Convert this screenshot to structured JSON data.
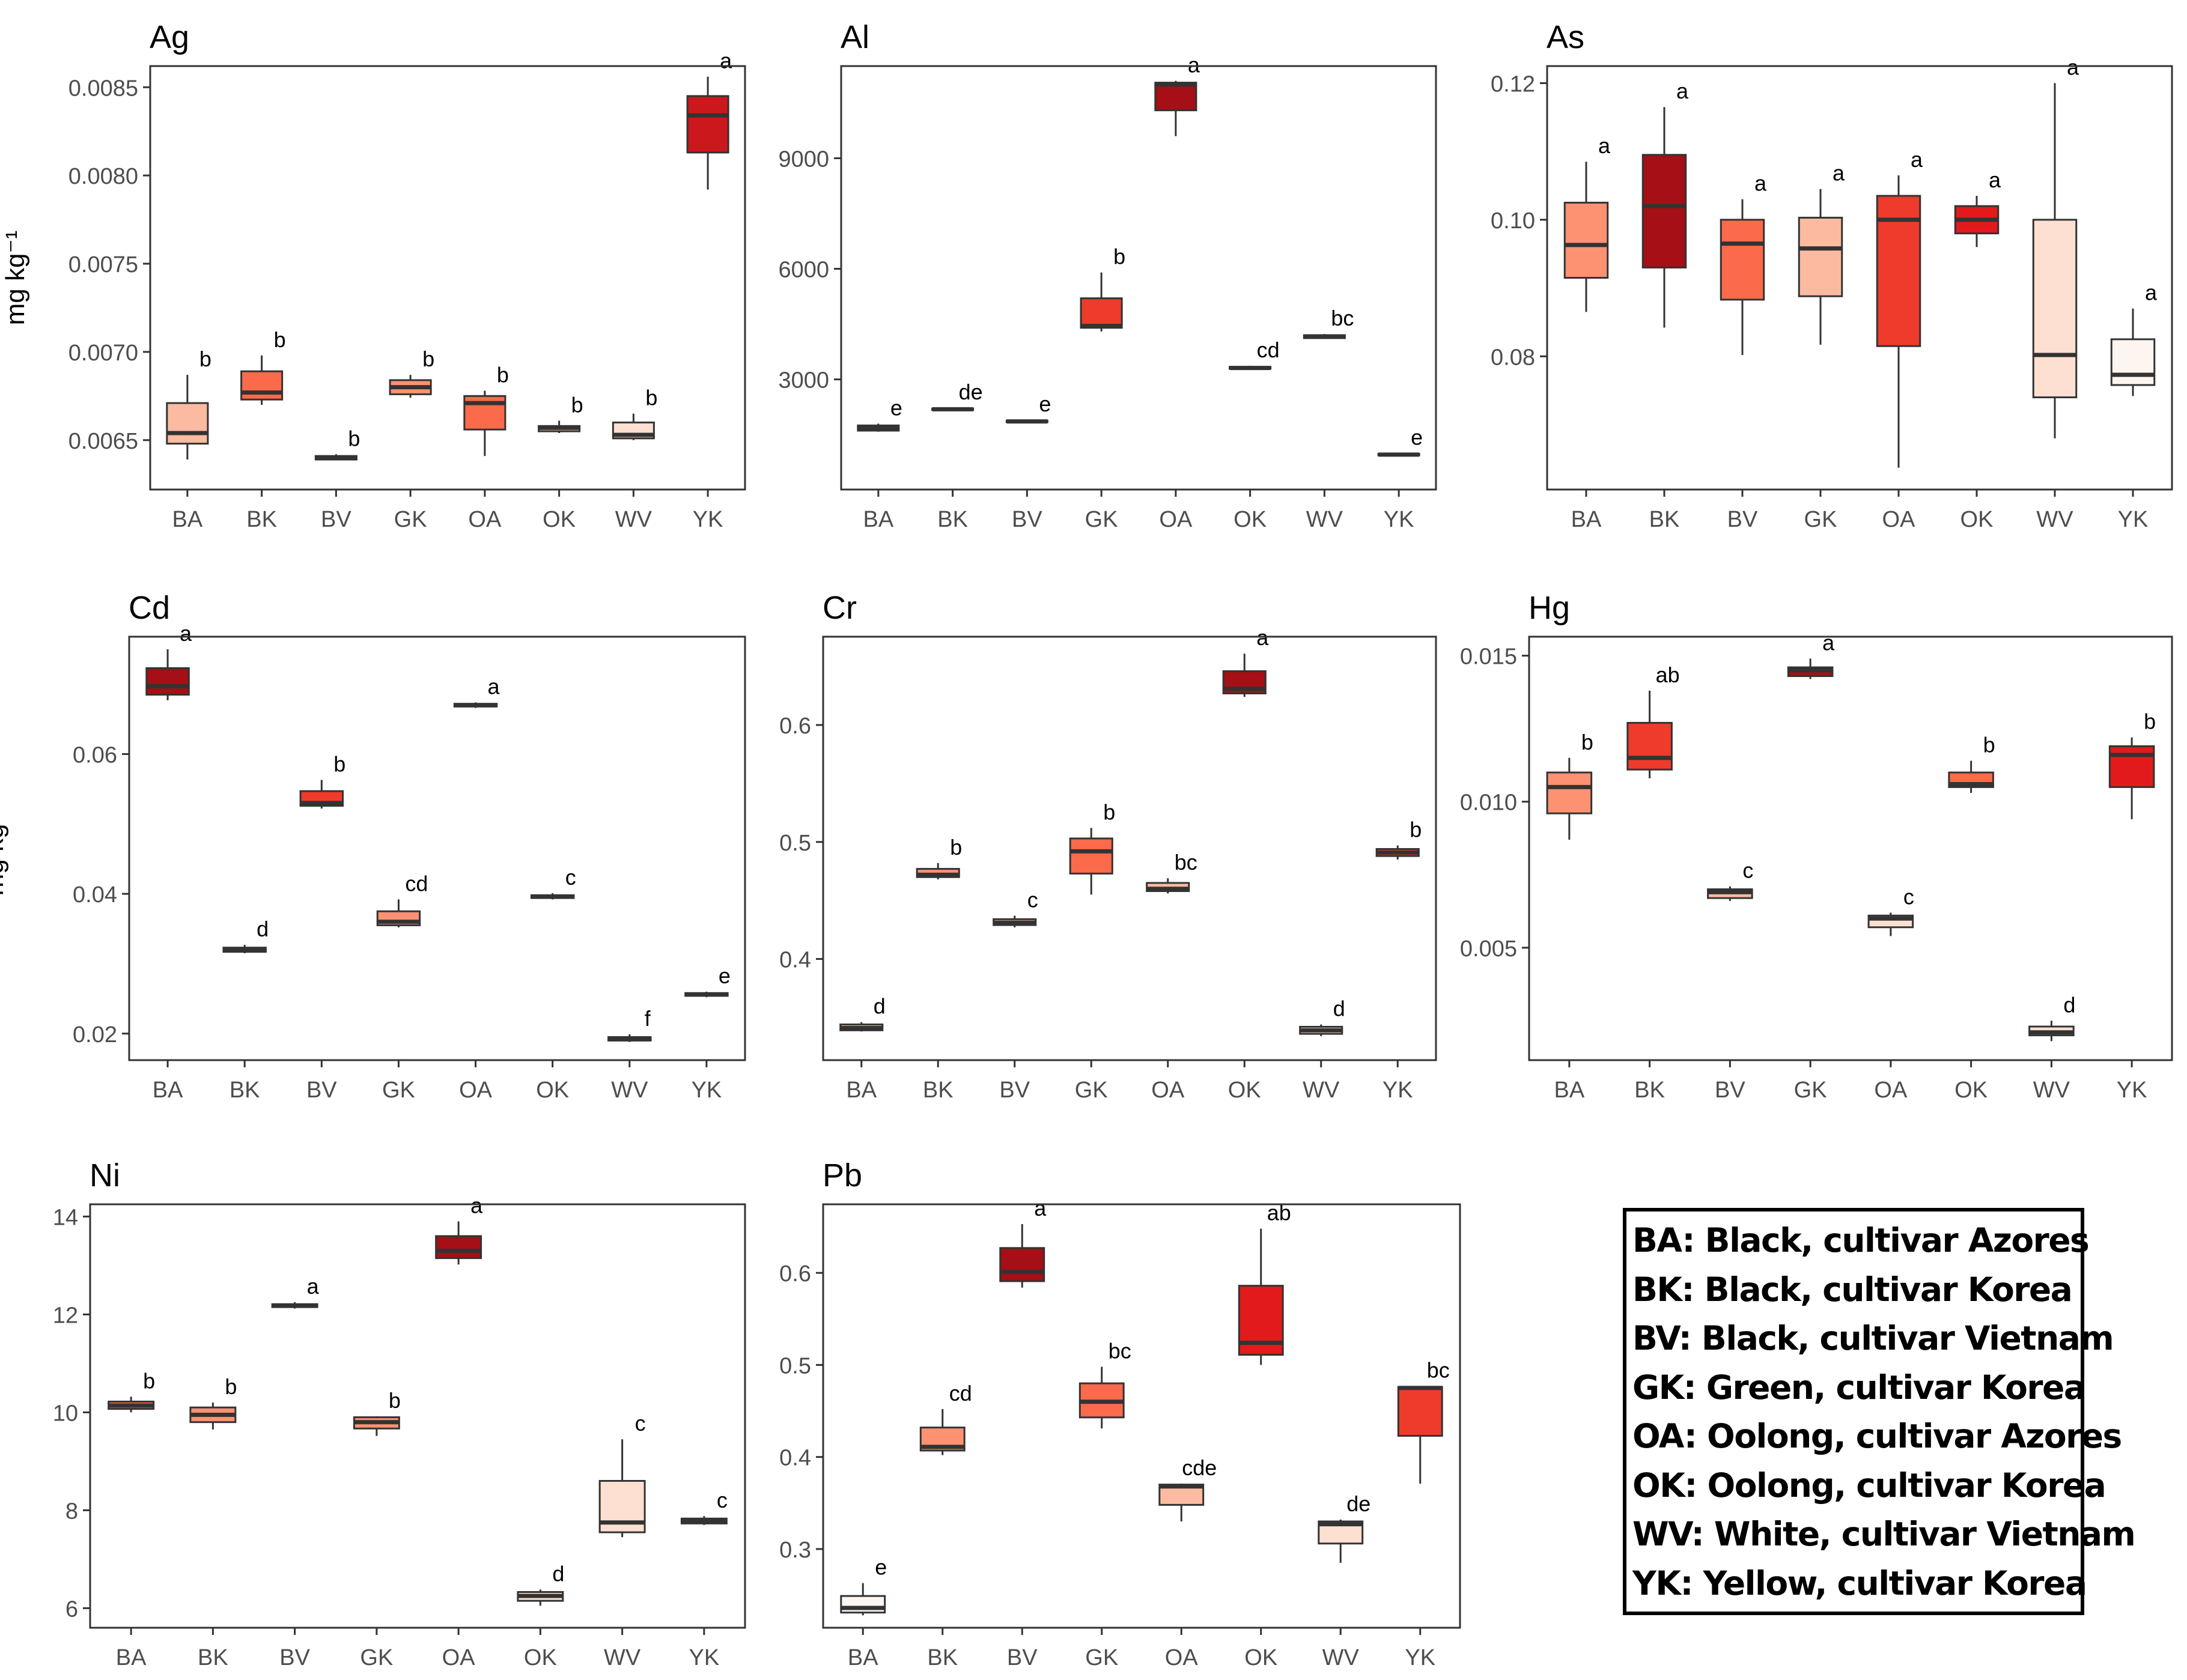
{
  "y_unit_label": "mg kg⁻¹",
  "legend": [
    "BA: Black, cultivar Azores",
    "BK: Black, cultivar Korea",
    "BV: Black, cultivar Vietnam",
    "GK: Green, cultivar Korea",
    "OA: Oolong, cultivar Azores",
    "OK: Oolong, cultivar Korea",
    "WV: White, cultivar Vietnam",
    "YK: Yellow, cultivar Korea"
  ],
  "chart_data": [
    {
      "type": "box",
      "title": "Ag",
      "ylabel": "mg kg⁻¹",
      "categories": [
        "BA",
        "BK",
        "BV",
        "GK",
        "OA",
        "OK",
        "WV",
        "YK"
      ],
      "ylim": [
        0.00622,
        0.00862
      ],
      "yticks": [
        0.0065,
        0.007,
        0.0075,
        0.008,
        0.0085
      ],
      "ytick_labels": [
        "0.0065",
        "0.0070",
        "0.0075",
        "0.0080",
        "0.0085"
      ],
      "boxes": [
        {
          "min": 0.00639,
          "q1": 0.00648,
          "median": 0.00654,
          "q3": 0.00671,
          "max": 0.00687,
          "letter": "b",
          "color": "#fcbba1"
        },
        {
          "min": 0.0067,
          "q1": 0.00673,
          "median": 0.00677,
          "q3": 0.00689,
          "max": 0.00698,
          "letter": "b",
          "color": "#fb6a4a"
        },
        {
          "min": 0.00639,
          "q1": 0.00639,
          "median": 0.0064,
          "q3": 0.00641,
          "max": 0.00642,
          "letter": "b",
          "color": "#fff5f0"
        },
        {
          "min": 0.00674,
          "q1": 0.00676,
          "median": 0.0068,
          "q3": 0.00684,
          "max": 0.00687,
          "letter": "b",
          "color": "#fc9272"
        },
        {
          "min": 0.00641,
          "q1": 0.00656,
          "median": 0.00671,
          "q3": 0.00675,
          "max": 0.00678,
          "letter": "b",
          "color": "#fb6a4a"
        },
        {
          "min": 0.00654,
          "q1": 0.00655,
          "median": 0.00657,
          "q3": 0.00658,
          "max": 0.00661,
          "letter": "b",
          "color": "#fcbba1"
        },
        {
          "min": 0.0065,
          "q1": 0.00651,
          "median": 0.00653,
          "q3": 0.0066,
          "max": 0.00665,
          "letter": "b",
          "color": "#fee0d2"
        },
        {
          "min": 0.00792,
          "q1": 0.00813,
          "median": 0.00834,
          "q3": 0.00845,
          "max": 0.00856,
          "letter": "a",
          "color": "#cb181d"
        }
      ]
    },
    {
      "type": "box",
      "title": "Al",
      "ylabel": "",
      "categories": [
        "BA",
        "BK",
        "BV",
        "GK",
        "OA",
        "OK",
        "WV",
        "YK"
      ],
      "ylim": [
        12,
        11500
      ],
      "yticks": [
        3000,
        6000,
        9000
      ],
      "ytick_labels": [
        "3000",
        "6000",
        "9000"
      ],
      "boxes": [
        {
          "min": 1580,
          "q1": 1610,
          "median": 1690,
          "q3": 1750,
          "max": 1800,
          "letter": "e",
          "color": "#fcbba1"
        },
        {
          "min": 2150,
          "q1": 2170,
          "median": 2190,
          "q3": 2210,
          "max": 2230,
          "letter": "de",
          "color": "#fcbba1"
        },
        {
          "min": 1820,
          "q1": 1840,
          "median": 1860,
          "q3": 1880,
          "max": 1900,
          "letter": "e",
          "color": "#fcbba1"
        },
        {
          "min": 4300,
          "q1": 4400,
          "median": 4450,
          "q3": 5200,
          "max": 5900,
          "letter": "b",
          "color": "#ef3b2c"
        },
        {
          "min": 9600,
          "q1": 10300,
          "median": 11000,
          "q3": 11050,
          "max": 11100,
          "letter": "a",
          "color": "#a50f15"
        },
        {
          "min": 3270,
          "q1": 3290,
          "median": 3310,
          "q3": 3340,
          "max": 3370,
          "letter": "cd",
          "color": "#fcbba1"
        },
        {
          "min": 4100,
          "q1": 4120,
          "median": 4160,
          "q3": 4200,
          "max": 4230,
          "letter": "bc",
          "color": "#fcbba1"
        },
        {
          "min": 920,
          "q1": 940,
          "median": 960,
          "q3": 980,
          "max": 1000,
          "letter": "e",
          "color": "#fff5f0"
        }
      ]
    },
    {
      "type": "box",
      "title": "As",
      "ylabel": "",
      "categories": [
        "BA",
        "BK",
        "BV",
        "GK",
        "OA",
        "OK",
        "WV",
        "YK"
      ],
      "ylim": [
        0.0605,
        0.1225
      ],
      "yticks": [
        0.08,
        0.1,
        0.12
      ],
      "ytick_labels": [
        "0.08",
        "0.10",
        "0.12"
      ],
      "boxes": [
        {
          "min": 0.0865,
          "q1": 0.0915,
          "median": 0.0963,
          "q3": 0.1025,
          "max": 0.1085,
          "letter": "a",
          "color": "#fc9272"
        },
        {
          "min": 0.0842,
          "q1": 0.093,
          "median": 0.102,
          "q3": 0.1095,
          "max": 0.1165,
          "letter": "a",
          "color": "#a50f15"
        },
        {
          "min": 0.0802,
          "q1": 0.0883,
          "median": 0.0965,
          "q3": 0.1,
          "max": 0.103,
          "letter": "a",
          "color": "#fb6a4a"
        },
        {
          "min": 0.0817,
          "q1": 0.0888,
          "median": 0.0958,
          "q3": 0.1003,
          "max": 0.1045,
          "letter": "a",
          "color": "#fcbba1"
        },
        {
          "min": 0.0637,
          "q1": 0.0815,
          "median": 0.1,
          "q3": 0.1035,
          "max": 0.1065,
          "letter": "a",
          "color": "#ef3b2c"
        },
        {
          "min": 0.096,
          "q1": 0.098,
          "median": 0.1,
          "q3": 0.102,
          "max": 0.1035,
          "letter": "a",
          "color": "#e31a1c"
        },
        {
          "min": 0.068,
          "q1": 0.074,
          "median": 0.0802,
          "q3": 0.1,
          "max": 0.12,
          "letter": "a",
          "color": "#fee0d2"
        },
        {
          "min": 0.0742,
          "q1": 0.0758,
          "median": 0.0773,
          "q3": 0.0825,
          "max": 0.087,
          "letter": "a",
          "color": "#fff5f0"
        }
      ]
    },
    {
      "type": "box",
      "title": "Cd",
      "ylabel": "mg kg⁻¹",
      "categories": [
        "BA",
        "BK",
        "BV",
        "GK",
        "OA",
        "OK",
        "WV",
        "YK"
      ],
      "ylim": [
        0.0162,
        0.0768
      ],
      "yticks": [
        0.02,
        0.04,
        0.06
      ],
      "ytick_labels": [
        "0.02",
        "0.04",
        "0.06"
      ],
      "boxes": [
        {
          "min": 0.0677,
          "q1": 0.0685,
          "median": 0.0697,
          "q3": 0.0723,
          "max": 0.075,
          "letter": "a",
          "color": "#a50f15"
        },
        {
          "min": 0.0315,
          "q1": 0.0317,
          "median": 0.032,
          "q3": 0.0323,
          "max": 0.0327,
          "letter": "d",
          "color": "#fcbba1"
        },
        {
          "min": 0.0522,
          "q1": 0.0526,
          "median": 0.053,
          "q3": 0.0547,
          "max": 0.0563,
          "letter": "b",
          "color": "#ef3b2c"
        },
        {
          "min": 0.0352,
          "q1": 0.0355,
          "median": 0.036,
          "q3": 0.0375,
          "max": 0.0392,
          "letter": "cd",
          "color": "#fc9272"
        },
        {
          "min": 0.0666,
          "q1": 0.0668,
          "median": 0.067,
          "q3": 0.0672,
          "max": 0.0674,
          "letter": "a",
          "color": "#fcbba1"
        },
        {
          "min": 0.0392,
          "q1": 0.0394,
          "median": 0.0396,
          "q3": 0.0398,
          "max": 0.0401,
          "letter": "c",
          "color": "#fcbba1"
        },
        {
          "min": 0.0188,
          "q1": 0.019,
          "median": 0.0192,
          "q3": 0.0195,
          "max": 0.0199,
          "letter": "f",
          "color": "#fee0d2"
        },
        {
          "min": 0.0252,
          "q1": 0.0254,
          "median": 0.0256,
          "q3": 0.0258,
          "max": 0.026,
          "letter": "e",
          "color": "#fee0d2"
        }
      ]
    },
    {
      "type": "box",
      "title": "Cr",
      "ylabel": "",
      "categories": [
        "BA",
        "BK",
        "BV",
        "GK",
        "OA",
        "OK",
        "WV",
        "YK"
      ],
      "ylim": [
        0.3135,
        0.6755
      ],
      "yticks": [
        0.4,
        0.5,
        0.6
      ],
      "ytick_labels": [
        "0.4",
        "0.5",
        "0.6"
      ],
      "boxes": [
        {
          "min": 0.338,
          "q1": 0.339,
          "median": 0.341,
          "q3": 0.344,
          "max": 0.346,
          "letter": "d",
          "color": "#fcbba1"
        },
        {
          "min": 0.468,
          "q1": 0.47,
          "median": 0.472,
          "q3": 0.477,
          "max": 0.482,
          "letter": "b",
          "color": "#fc9272"
        },
        {
          "min": 0.427,
          "q1": 0.429,
          "median": 0.431,
          "q3": 0.434,
          "max": 0.437,
          "letter": "c",
          "color": "#fcbba1"
        },
        {
          "min": 0.455,
          "q1": 0.473,
          "median": 0.492,
          "q3": 0.503,
          "max": 0.512,
          "letter": "b",
          "color": "#fb6a4a"
        },
        {
          "min": 0.456,
          "q1": 0.458,
          "median": 0.46,
          "q3": 0.465,
          "max": 0.469,
          "letter": "bc",
          "color": "#fcbba1"
        },
        {
          "min": 0.624,
          "q1": 0.627,
          "median": 0.631,
          "q3": 0.646,
          "max": 0.661,
          "letter": "a",
          "color": "#a50f15"
        },
        {
          "min": 0.334,
          "q1": 0.336,
          "median": 0.339,
          "q3": 0.342,
          "max": 0.344,
          "letter": "d",
          "color": "#fee0d2"
        },
        {
          "min": 0.485,
          "q1": 0.488,
          "median": 0.491,
          "q3": 0.494,
          "max": 0.497,
          "letter": "b",
          "color": "#ef3b2c"
        }
      ]
    },
    {
      "type": "box",
      "title": "Hg",
      "ylabel": "",
      "categories": [
        "BA",
        "BK",
        "BV",
        "GK",
        "OA",
        "OK",
        "WV",
        "YK"
      ],
      "ylim": [
        0.00115,
        0.01565
      ],
      "yticks": [
        0.005,
        0.01,
        0.015
      ],
      "ytick_labels": [
        "0.005",
        "0.010",
        "0.015"
      ],
      "boxes": [
        {
          "min": 0.0087,
          "q1": 0.0096,
          "median": 0.0105,
          "q3": 0.011,
          "max": 0.0115,
          "letter": "b",
          "color": "#fc9272"
        },
        {
          "min": 0.0108,
          "q1": 0.0111,
          "median": 0.0115,
          "q3": 0.0127,
          "max": 0.0138,
          "letter": "ab",
          "color": "#ef3b2c"
        },
        {
          "min": 0.0066,
          "q1": 0.0067,
          "median": 0.0069,
          "q3": 0.007,
          "max": 0.0071,
          "letter": "c",
          "color": "#fcbba1"
        },
        {
          "min": 0.0142,
          "q1": 0.0143,
          "median": 0.0145,
          "q3": 0.0146,
          "max": 0.0149,
          "letter": "a",
          "color": "#a50f15"
        },
        {
          "min": 0.0054,
          "q1": 0.0057,
          "median": 0.006,
          "q3": 0.0061,
          "max": 0.0062,
          "letter": "c",
          "color": "#fee0d2"
        },
        {
          "min": 0.0103,
          "q1": 0.0105,
          "median": 0.0106,
          "q3": 0.011,
          "max": 0.0114,
          "letter": "b",
          "color": "#fb6a4a"
        },
        {
          "min": 0.0018,
          "q1": 0.002,
          "median": 0.0021,
          "q3": 0.0023,
          "max": 0.0025,
          "letter": "d",
          "color": "#fee0d2"
        },
        {
          "min": 0.0094,
          "q1": 0.0105,
          "median": 0.0116,
          "q3": 0.0119,
          "max": 0.0122,
          "letter": "b",
          "color": "#e31a1c"
        }
      ]
    },
    {
      "type": "box",
      "title": "Ni",
      "ylabel": "mg kg⁻¹",
      "categories": [
        "BA",
        "BK",
        "BV",
        "GK",
        "OA",
        "OK",
        "WV",
        "YK"
      ],
      "ylim": [
        5.6,
        14.25
      ],
      "yticks": [
        6,
        8,
        10,
        12,
        14
      ],
      "ytick_labels": [
        "6",
        "8",
        "10",
        "12",
        "14"
      ],
      "boxes": [
        {
          "min": 10.0,
          "q1": 10.07,
          "median": 10.14,
          "q3": 10.22,
          "max": 10.32,
          "letter": "b",
          "color": "#fb6a4a"
        },
        {
          "min": 9.65,
          "q1": 9.8,
          "median": 9.95,
          "q3": 10.1,
          "max": 10.2,
          "letter": "b",
          "color": "#fc9272"
        },
        {
          "min": 12.12,
          "q1": 12.15,
          "median": 12.18,
          "q3": 12.21,
          "max": 12.25,
          "letter": "a",
          "color": "#fcbba1"
        },
        {
          "min": 9.52,
          "q1": 9.67,
          "median": 9.8,
          "q3": 9.9,
          "max": 9.92,
          "letter": "b",
          "color": "#fc9272"
        },
        {
          "min": 13.02,
          "q1": 13.15,
          "median": 13.3,
          "q3": 13.6,
          "max": 13.9,
          "letter": "a",
          "color": "#a50f15"
        },
        {
          "min": 6.05,
          "q1": 6.15,
          "median": 6.25,
          "q3": 6.33,
          "max": 6.38,
          "letter": "d",
          "color": "#fee0d2"
        },
        {
          "min": 7.45,
          "q1": 7.55,
          "median": 7.75,
          "q3": 8.6,
          "max": 9.45,
          "letter": "c",
          "color": "#fee0d2"
        },
        {
          "min": 7.7,
          "q1": 7.73,
          "median": 7.78,
          "q3": 7.83,
          "max": 7.88,
          "letter": "c",
          "color": "#fcbba1"
        }
      ]
    },
    {
      "type": "box",
      "title": "Pb",
      "ylabel": "",
      "categories": [
        "BA",
        "BK",
        "BV",
        "GK",
        "OA",
        "OK",
        "WV",
        "YK"
      ],
      "ylim": [
        0.2145,
        0.6745
      ],
      "yticks": [
        0.3,
        0.4,
        0.5,
        0.6
      ],
      "ytick_labels": [
        "0.3",
        "0.4",
        "0.5",
        "0.6"
      ],
      "boxes": [
        {
          "min": 0.228,
          "q1": 0.231,
          "median": 0.236,
          "q3": 0.249,
          "max": 0.263,
          "letter": "e",
          "color": "#fff5f0"
        },
        {
          "min": 0.402,
          "q1": 0.407,
          "median": 0.411,
          "q3": 0.432,
          "max": 0.452,
          "letter": "cd",
          "color": "#fc9272"
        },
        {
          "min": 0.584,
          "q1": 0.591,
          "median": 0.601,
          "q3": 0.627,
          "max": 0.653,
          "letter": "a",
          "color": "#a50f15"
        },
        {
          "min": 0.431,
          "q1": 0.443,
          "median": 0.46,
          "q3": 0.48,
          "max": 0.498,
          "letter": "bc",
          "color": "#fb6a4a"
        },
        {
          "min": 0.33,
          "q1": 0.348,
          "median": 0.368,
          "q3": 0.37,
          "max": 0.371,
          "letter": "cde",
          "color": "#fcbba1"
        },
        {
          "min": 0.5,
          "q1": 0.511,
          "median": 0.524,
          "q3": 0.586,
          "max": 0.648,
          "letter": "ab",
          "color": "#e31a1c"
        },
        {
          "min": 0.285,
          "q1": 0.306,
          "median": 0.327,
          "q3": 0.33,
          "max": 0.332,
          "letter": "de",
          "color": "#fee0d2"
        },
        {
          "min": 0.371,
          "q1": 0.423,
          "median": 0.475,
          "q3": 0.476,
          "max": 0.477,
          "letter": "bc",
          "color": "#ef3b2c"
        }
      ]
    }
  ]
}
